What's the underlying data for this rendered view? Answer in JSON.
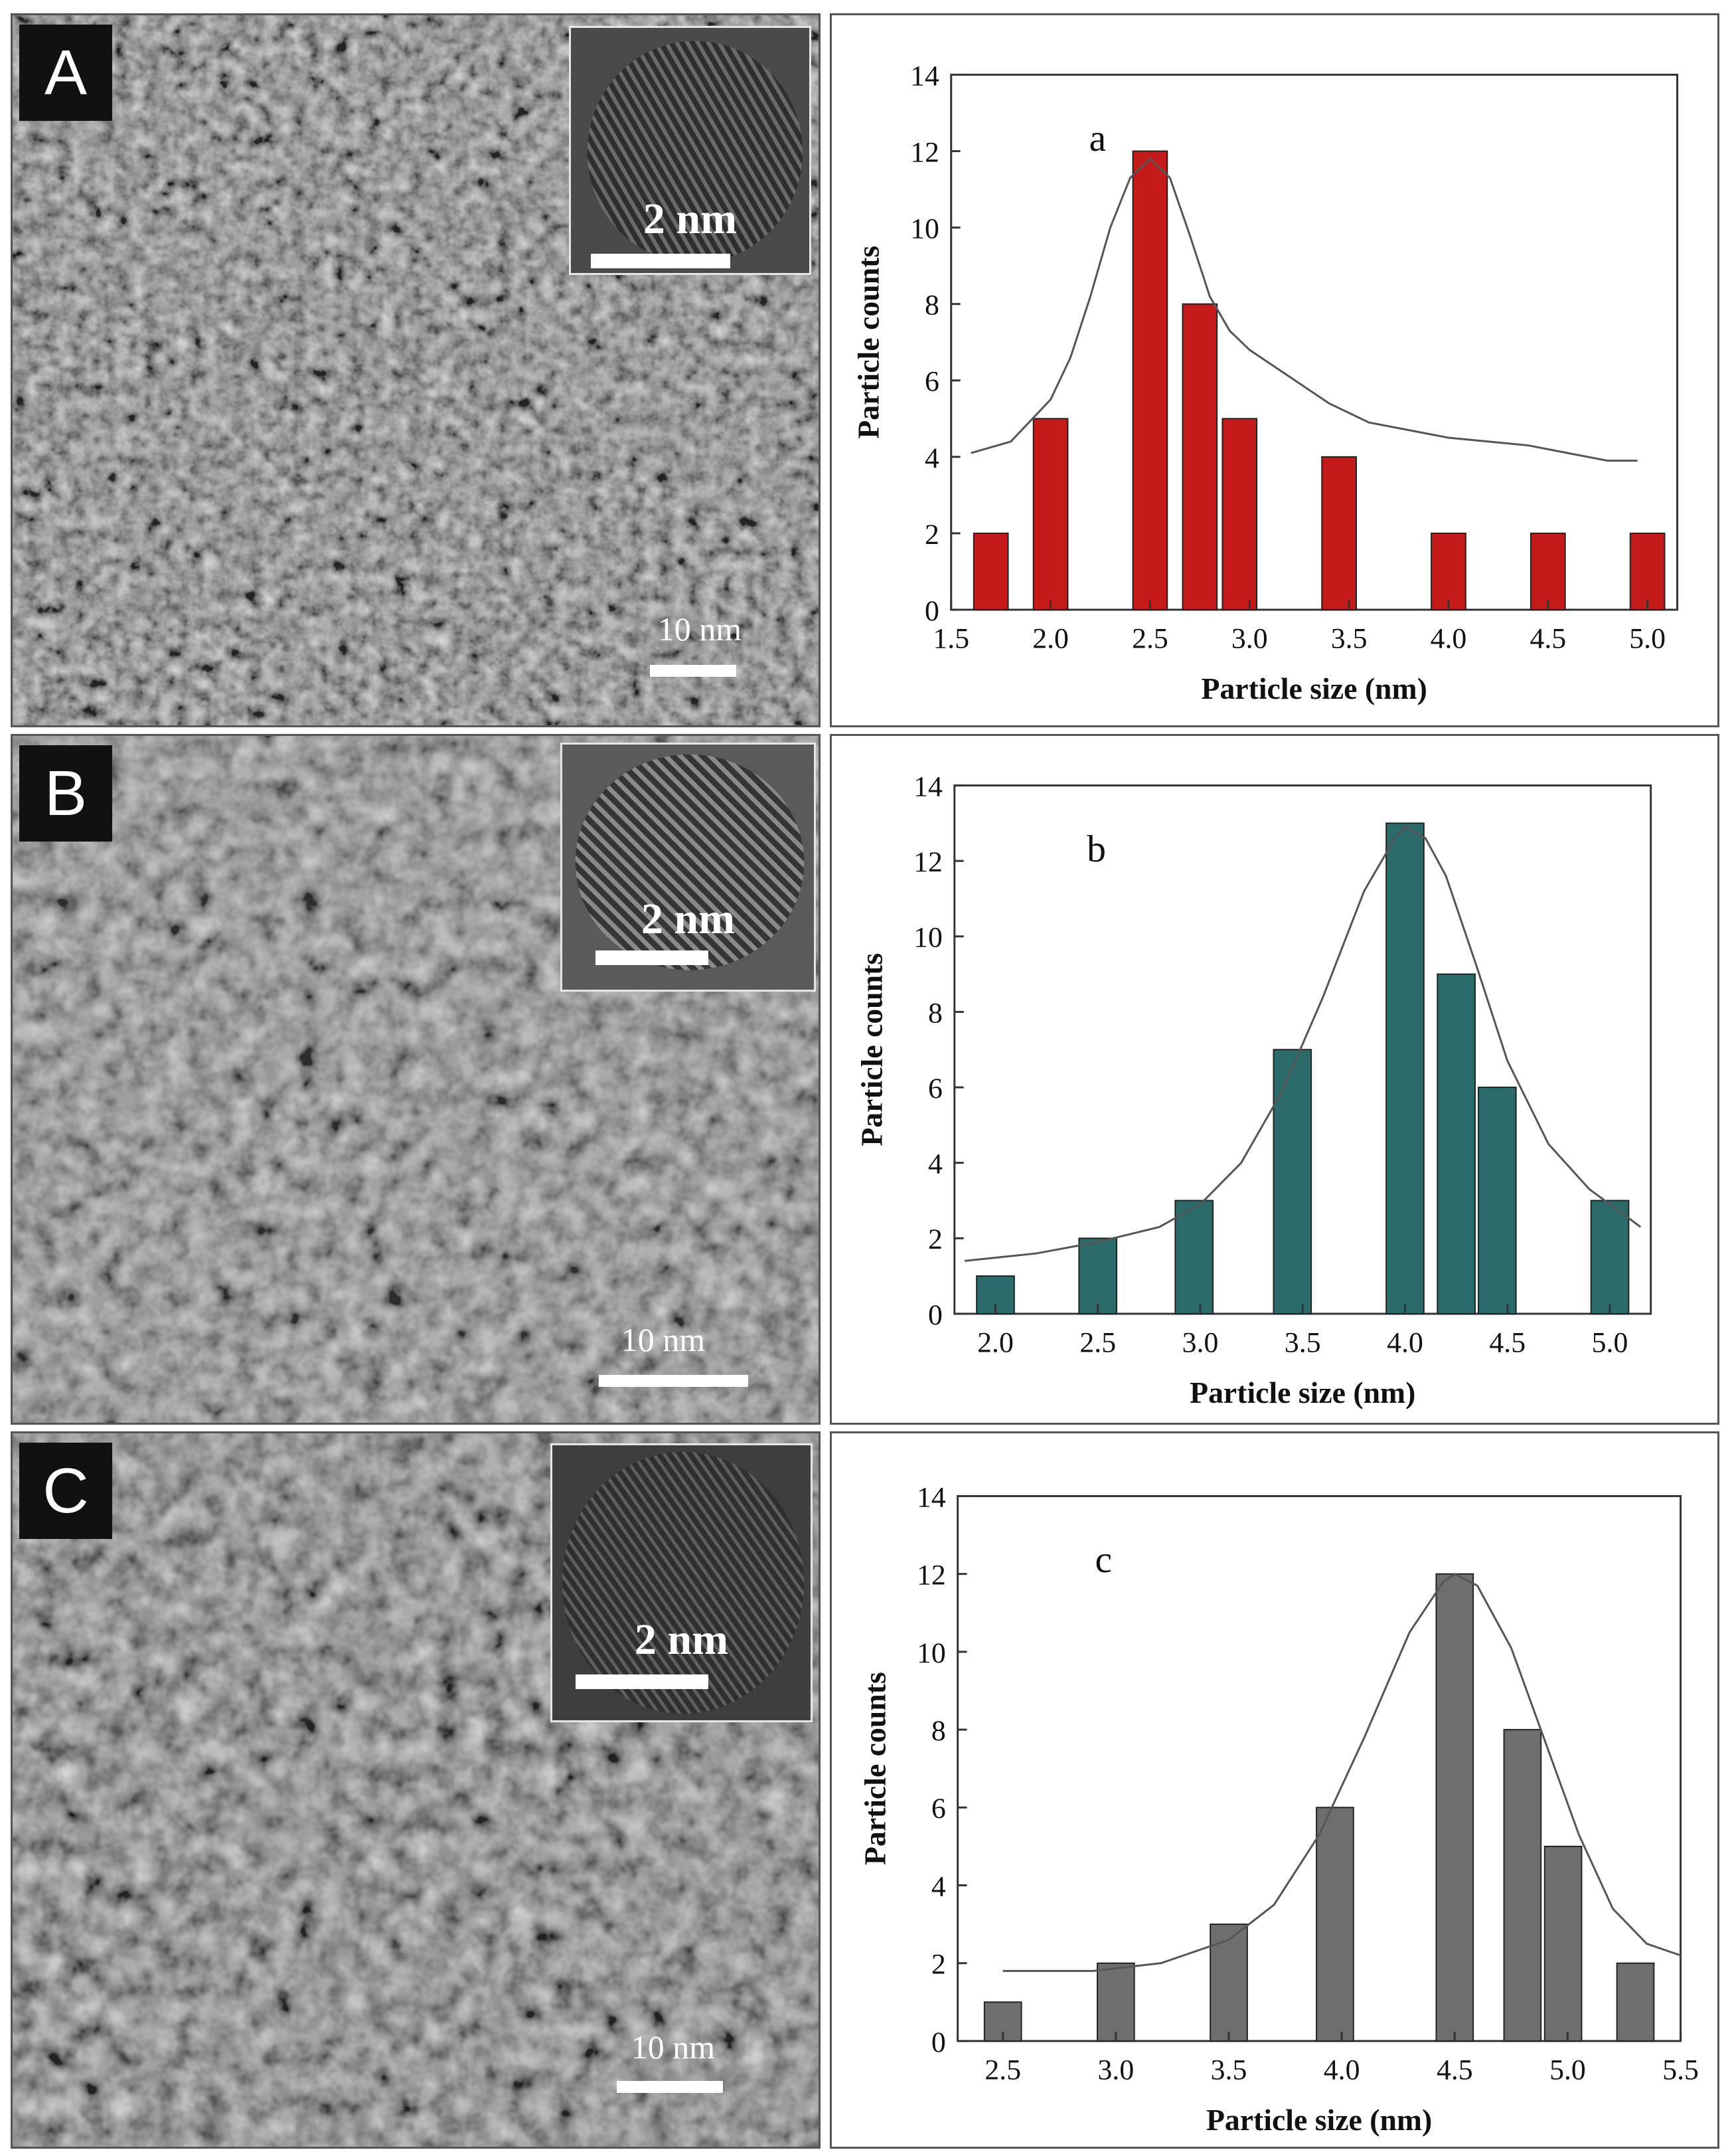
{
  "panels": [
    {
      "letter": "A",
      "inset_scale": "2 nm",
      "image_scale": "10 nm",
      "chart_data": {
        "type": "bar",
        "panel_label": "a",
        "xlabel": "Particle size (nm)",
        "ylabel": "Particle counts",
        "xlim": [
          1.5,
          5.15
        ],
        "ylim": [
          0,
          14
        ],
        "xticks": [
          "1.5",
          "2.0",
          "2.5",
          "3.0",
          "3.5",
          "4.0",
          "4.5",
          "5.0"
        ],
        "yticks": [
          "0",
          "2",
          "4",
          "6",
          "8",
          "10",
          "12",
          "14"
        ],
        "bar_color": "#c41a1a",
        "bars": [
          {
            "x": 1.7,
            "value": 2
          },
          {
            "x": 2.0,
            "value": 5
          },
          {
            "x": 2.5,
            "value": 12
          },
          {
            "x": 2.75,
            "value": 8
          },
          {
            "x": 2.95,
            "value": 5
          },
          {
            "x": 3.45,
            "value": 4
          },
          {
            "x": 4.0,
            "value": 2
          },
          {
            "x": 4.5,
            "value": 2
          },
          {
            "x": 5.0,
            "value": 2
          }
        ],
        "fit_curve": [
          [
            1.6,
            4.1
          ],
          [
            1.8,
            4.4
          ],
          [
            2.0,
            5.5
          ],
          [
            2.1,
            6.6
          ],
          [
            2.2,
            8.2
          ],
          [
            2.3,
            10.0
          ],
          [
            2.4,
            11.3
          ],
          [
            2.5,
            11.8
          ],
          [
            2.6,
            11.3
          ],
          [
            2.7,
            9.8
          ],
          [
            2.8,
            8.2
          ],
          [
            2.9,
            7.3
          ],
          [
            3.0,
            6.8
          ],
          [
            3.2,
            6.1
          ],
          [
            3.4,
            5.4
          ],
          [
            3.6,
            4.9
          ],
          [
            4.0,
            4.5
          ],
          [
            4.4,
            4.3
          ],
          [
            4.6,
            4.1
          ],
          [
            4.8,
            3.9
          ],
          [
            4.95,
            3.9
          ]
        ]
      }
    },
    {
      "letter": "B",
      "inset_scale": "2 nm",
      "image_scale": "10 nm",
      "chart_data": {
        "type": "bar",
        "panel_label": "b",
        "xlabel": "Particle size (nm)",
        "ylabel": "Particle counts",
        "xlim": [
          1.8,
          5.2
        ],
        "ylim": [
          0,
          14
        ],
        "xticks": [
          "2.0",
          "2.5",
          "3.0",
          "3.5",
          "4.0",
          "4.5",
          "5.0"
        ],
        "yticks": [
          "0",
          "2",
          "4",
          "6",
          "8",
          "10",
          "12",
          "14"
        ],
        "bar_color": "#2b6b6b",
        "bars": [
          {
            "x": 2.0,
            "value": 1
          },
          {
            "x": 2.5,
            "value": 2
          },
          {
            "x": 2.97,
            "value": 3
          },
          {
            "x": 3.45,
            "value": 7
          },
          {
            "x": 4.0,
            "value": 13
          },
          {
            "x": 4.25,
            "value": 9
          },
          {
            "x": 4.45,
            "value": 6
          },
          {
            "x": 5.0,
            "value": 3
          }
        ],
        "fit_curve": [
          [
            1.85,
            1.4
          ],
          [
            2.2,
            1.6
          ],
          [
            2.5,
            1.9
          ],
          [
            2.8,
            2.3
          ],
          [
            3.0,
            2.9
          ],
          [
            3.2,
            4.0
          ],
          [
            3.4,
            5.9
          ],
          [
            3.6,
            8.4
          ],
          [
            3.8,
            11.2
          ],
          [
            3.95,
            12.6
          ],
          [
            4.0,
            12.9
          ],
          [
            4.1,
            12.6
          ],
          [
            4.2,
            11.6
          ],
          [
            4.35,
            9.2
          ],
          [
            4.5,
            6.7
          ],
          [
            4.7,
            4.5
          ],
          [
            4.9,
            3.3
          ],
          [
            5.1,
            2.5
          ],
          [
            5.15,
            2.3
          ]
        ]
      }
    },
    {
      "letter": "C",
      "inset_scale": "2 nm",
      "image_scale": "10 nm",
      "chart_data": {
        "type": "bar",
        "panel_label": "c",
        "xlabel": "Particle size (nm)",
        "ylabel": "Particle counts",
        "xlim": [
          2.3,
          5.5
        ],
        "ylim": [
          0,
          14
        ],
        "xticks": [
          "2.5",
          "3.0",
          "3.5",
          "4.0",
          "4.5",
          "5.0",
          "5.5"
        ],
        "yticks": [
          "0",
          "2",
          "4",
          "6",
          "8",
          "10",
          "12",
          "14"
        ],
        "bar_color": "#6e6e6e",
        "bars": [
          {
            "x": 2.5,
            "value": 1
          },
          {
            "x": 3.0,
            "value": 2
          },
          {
            "x": 3.5,
            "value": 3
          },
          {
            "x": 3.97,
            "value": 6
          },
          {
            "x": 4.5,
            "value": 12
          },
          {
            "x": 4.8,
            "value": 8
          },
          {
            "x": 4.98,
            "value": 5
          },
          {
            "x": 5.3,
            "value": 2
          }
        ],
        "fit_curve": [
          [
            2.5,
            1.8
          ],
          [
            2.9,
            1.8
          ],
          [
            3.2,
            2.0
          ],
          [
            3.5,
            2.6
          ],
          [
            3.7,
            3.5
          ],
          [
            3.9,
            5.3
          ],
          [
            4.1,
            7.8
          ],
          [
            4.3,
            10.5
          ],
          [
            4.45,
            11.8
          ],
          [
            4.5,
            12.0
          ],
          [
            4.6,
            11.7
          ],
          [
            4.75,
            10.1
          ],
          [
            4.9,
            7.7
          ],
          [
            5.05,
            5.3
          ],
          [
            5.2,
            3.4
          ],
          [
            5.35,
            2.5
          ],
          [
            5.5,
            2.2
          ]
        ]
      }
    }
  ]
}
